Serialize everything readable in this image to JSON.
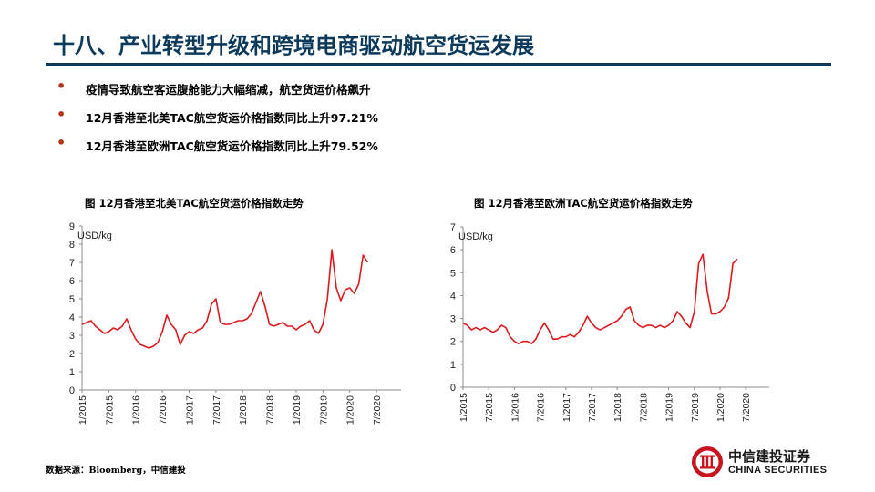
{
  "title": "十八、产业转型升级和跨境电商驱动航空货运发展",
  "bullets": [
    "疫情导致航空客运腹舱能力大幅缩减，航空货运价格飙升",
    "12月香港至北美TAC航空货运价格指数同比上升97.21%",
    "12月香港至欧洲TAC航空货运价格指数同比上升79.52%"
  ],
  "source": "数据来源：Bloomberg，中信建投",
  "logo": {
    "cn": "中信建投证券",
    "en": "CHINA SECURITIES"
  },
  "colors": {
    "title": "#0b3a5c",
    "bullet": "#b3361a",
    "line": "#e2181c",
    "logo": "#c8141e"
  },
  "chart_data": [
    {
      "type": "line",
      "title": "图 12月香港至北美TAC航空货运价格指数走势",
      "unit_label": "USD/kg",
      "ylim": [
        0,
        9
      ],
      "yticks": [
        "0",
        "1",
        "2",
        "3",
        "4",
        "5",
        "6",
        "7",
        "8",
        "9"
      ],
      "xticks": [
        "1/2015",
        "7/2015",
        "1/2016",
        "7/2016",
        "1/2017",
        "7/2017",
        "1/2018",
        "7/2018",
        "1/2019",
        "7/2019",
        "1/2020",
        "7/2020"
      ],
      "xlim": [
        0,
        71.5
      ],
      "grid": false,
      "series": [
        {
          "color": "#e2181c",
          "values": [
            3.6,
            3.7,
            3.8,
            3.5,
            3.3,
            3.1,
            3.2,
            3.4,
            3.3,
            3.5,
            3.9,
            3.3,
            2.8,
            2.5,
            2.4,
            2.3,
            2.4,
            2.6,
            3.2,
            4.1,
            3.6,
            3.3,
            2.5,
            3.0,
            3.2,
            3.1,
            3.3,
            3.4,
            3.8,
            4.7,
            5.0,
            3.7,
            3.6,
            3.6,
            3.7,
            3.8,
            3.8,
            3.9,
            4.2,
            4.8,
            5.4,
            4.6,
            3.6,
            3.5,
            3.6,
            3.7,
            3.5,
            3.5,
            3.3,
            3.5,
            3.6,
            3.8,
            3.3,
            3.1,
            3.6,
            5.0,
            7.7,
            5.6,
            4.9,
            5.5,
            5.6,
            5.3,
            5.8,
            7.4,
            7.0
          ]
        }
      ]
    },
    {
      "type": "line",
      "title": "图 12月香港至欧洲TAC航空货运价格指数走势",
      "unit_label": "USD/kg",
      "ylim": [
        0,
        7
      ],
      "yticks": [
        "0",
        "1",
        "2",
        "3",
        "4",
        "5",
        "6",
        "7"
      ],
      "xticks": [
        "1/2015",
        "7/2015",
        "1/2016",
        "7/2016",
        "1/2017",
        "7/2017",
        "1/2018",
        "7/2018",
        "1/2019",
        "7/2019",
        "1/2020",
        "7/2020"
      ],
      "xlim": [
        0,
        71.5
      ],
      "grid": false,
      "series": [
        {
          "color": "#e2181c",
          "values": [
            2.8,
            2.7,
            2.5,
            2.6,
            2.5,
            2.6,
            2.5,
            2.4,
            2.5,
            2.7,
            2.6,
            2.2,
            2.0,
            1.9,
            2.0,
            2.0,
            1.9,
            2.1,
            2.5,
            2.8,
            2.5,
            2.1,
            2.1,
            2.2,
            2.2,
            2.3,
            2.2,
            2.4,
            2.7,
            3.1,
            2.8,
            2.6,
            2.5,
            2.6,
            2.7,
            2.8,
            2.9,
            3.1,
            3.4,
            3.5,
            2.9,
            2.7,
            2.6,
            2.7,
            2.7,
            2.6,
            2.7,
            2.6,
            2.7,
            2.9,
            3.3,
            3.1,
            2.8,
            2.6,
            3.3,
            5.4,
            5.8,
            4.2,
            3.2,
            3.2,
            3.3,
            3.5,
            3.9,
            5.4,
            5.6
          ]
        }
      ]
    }
  ]
}
